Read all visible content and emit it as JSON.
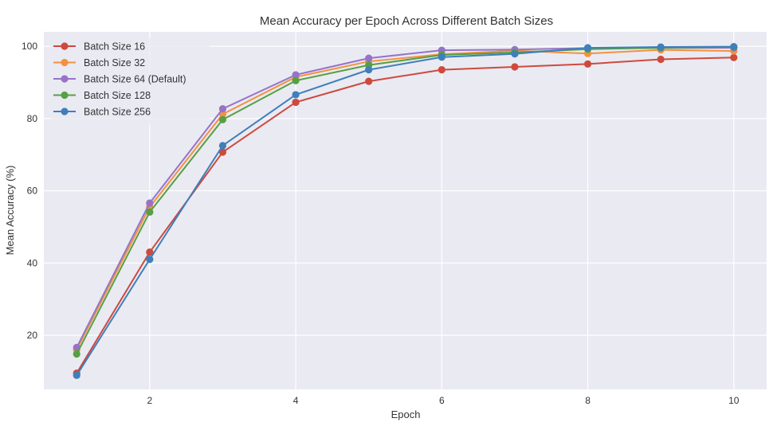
{
  "chart_data": {
    "type": "line",
    "title": "Mean Accuracy per Epoch Across Different Batch Sizes",
    "xlabel": "Epoch",
    "ylabel": "Mean Accuracy (%)",
    "xlim": [
      0.55,
      10.45
    ],
    "ylim": [
      5,
      104
    ],
    "xticks": [
      2,
      4,
      6,
      8,
      10
    ],
    "yticks": [
      20,
      40,
      60,
      80,
      100
    ],
    "grid": true,
    "legend_position": "top-left",
    "x": [
      1,
      2,
      3,
      4,
      5,
      6,
      7,
      8,
      9,
      10
    ],
    "series": [
      {
        "name": "Batch Size 16",
        "color": "#cd4a3d",
        "values": [
          9.5,
          43.0,
          70.7,
          84.5,
          90.3,
          93.5,
          94.3,
          95.1,
          96.4,
          96.9
        ]
      },
      {
        "name": "Batch Size 32",
        "color": "#f4913f",
        "values": [
          16.0,
          55.5,
          81.2,
          91.5,
          95.8,
          97.8,
          98.8,
          98.0,
          99.0,
          98.7
        ]
      },
      {
        "name": "Batch Size 64 (Default)",
        "color": "#9673c7",
        "values": [
          16.6,
          56.6,
          82.7,
          92.1,
          96.7,
          98.9,
          99.1,
          99.5,
          99.5,
          99.6
        ]
      },
      {
        "name": "Batch Size 128",
        "color": "#56a043",
        "values": [
          14.8,
          54.1,
          79.7,
          90.5,
          94.8,
          97.6,
          98.3,
          99.2,
          99.6,
          99.8
        ]
      },
      {
        "name": "Batch Size 256",
        "color": "#3f7fba",
        "values": [
          8.9,
          41.0,
          72.5,
          86.6,
          93.5,
          97.0,
          97.9,
          99.6,
          99.8,
          99.9
        ]
      }
    ]
  }
}
